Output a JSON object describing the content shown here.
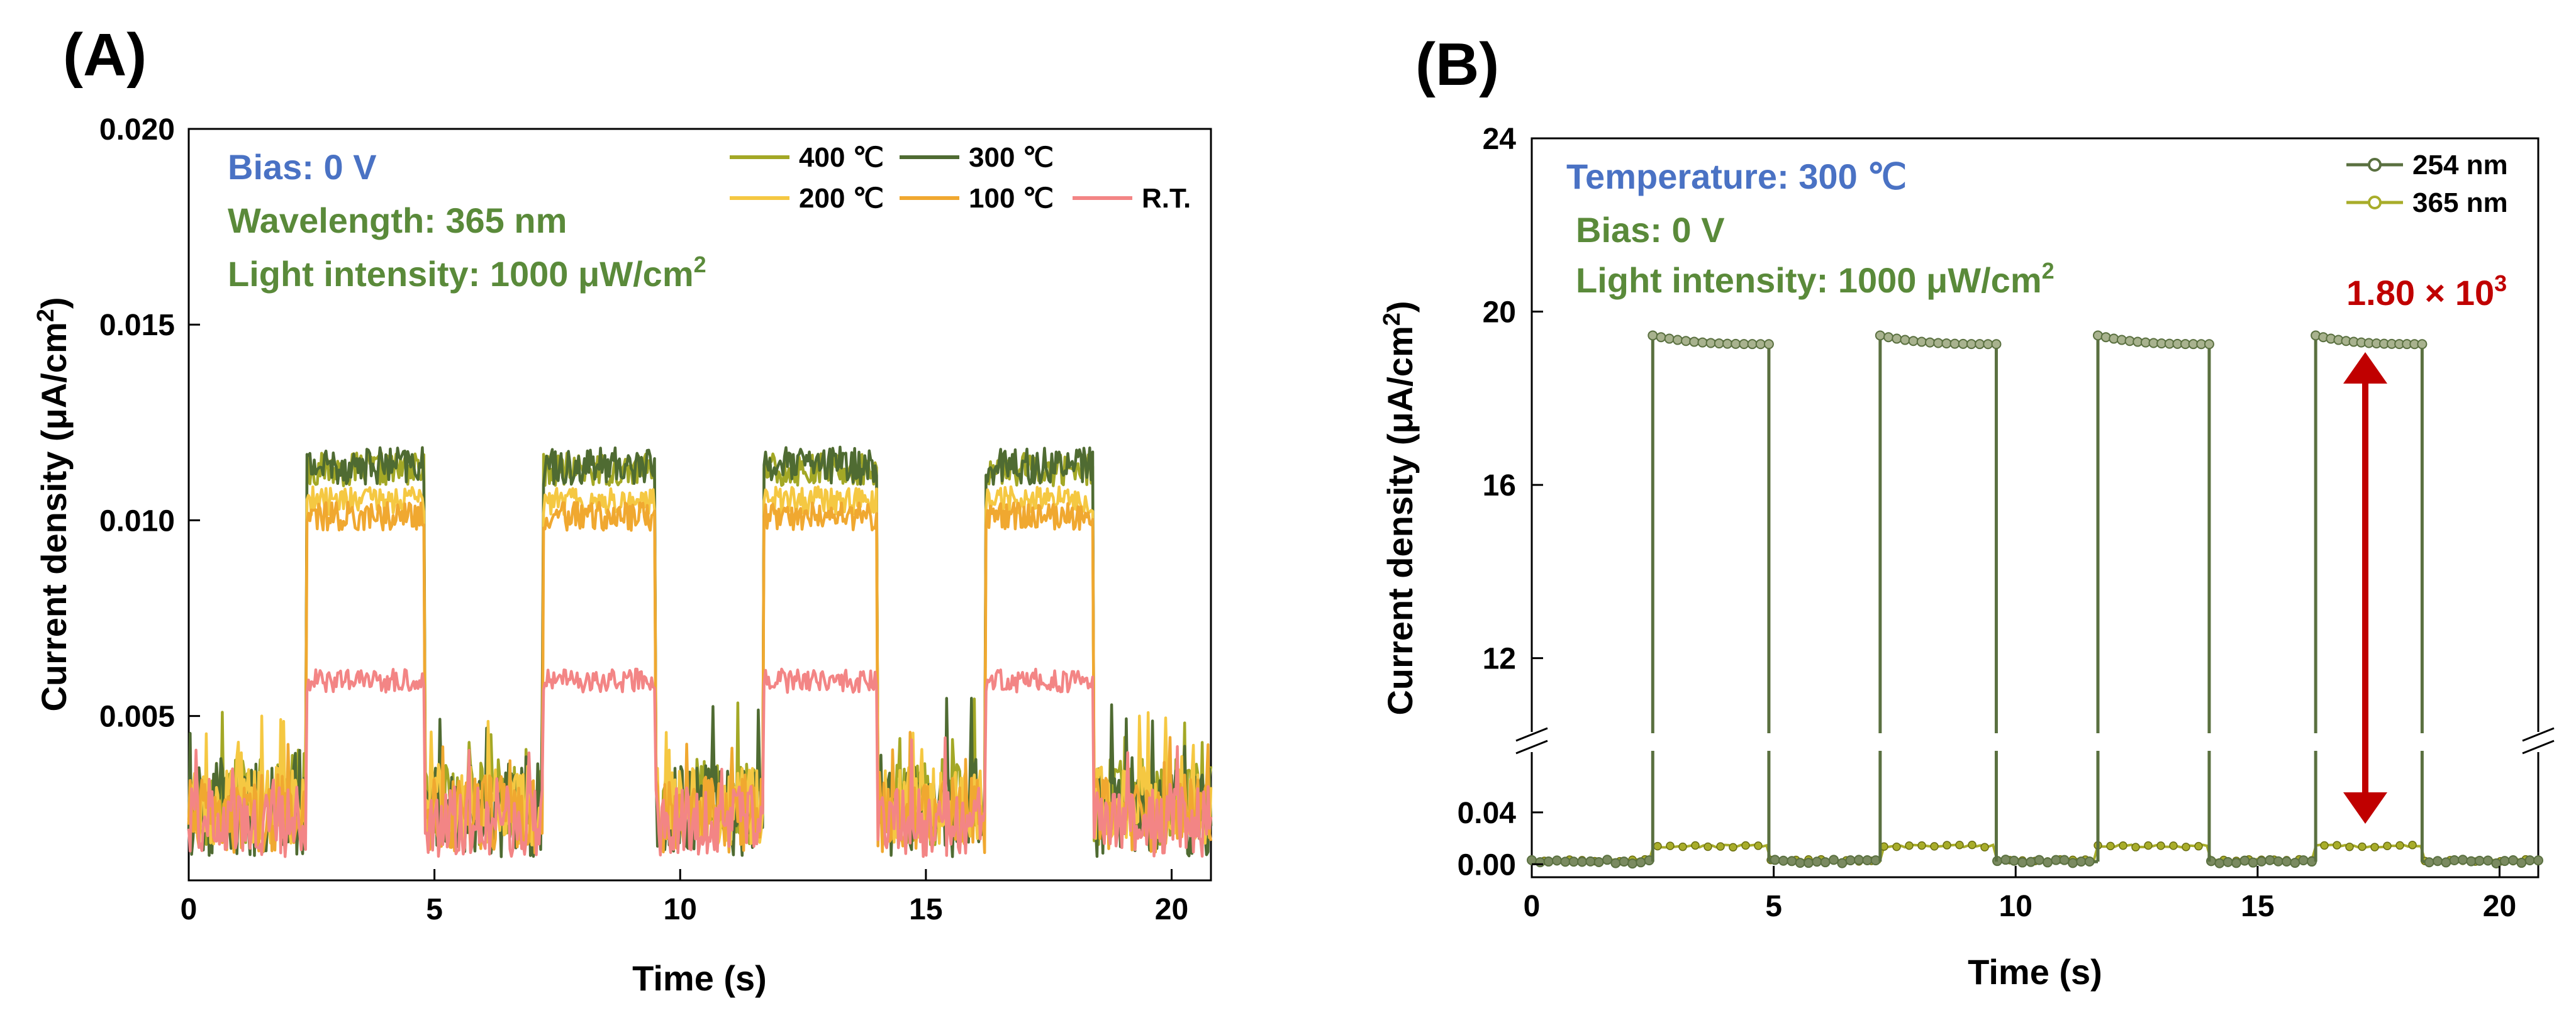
{
  "chart_data": [
    {
      "panel_label": "(A)",
      "type": "line",
      "xlabel": "Time (s)",
      "ylabel_prefix": "Current density (",
      "ylabel_mu": "μ",
      "ylabel_unit": "A/cm",
      "ylabel_sup": "2",
      "ylabel_suffix": ")",
      "xlim": [
        0,
        20.8
      ],
      "ylim": [
        0.0008,
        0.02
      ],
      "xticks": [
        0,
        5,
        10,
        15,
        20
      ],
      "yticks": [
        0.005,
        0.01,
        0.015,
        0.02
      ],
      "ytick_labels": [
        "0.005",
        "0.010",
        "0.015",
        "0.020"
      ],
      "annotations": {
        "bias": "Bias: 0 V",
        "wavelength": "Wavelength: 365 nm",
        "intensity_prefix": "Light intensity: 1000 μW/cm",
        "intensity_sup": "2"
      },
      "annotation_colors": {
        "bias": "#4a72c4",
        "wavelength": "#5a8a3a",
        "intensity": "#5a8a3a"
      },
      "light_on_intervals": [
        [
          2.4,
          4.8
        ],
        [
          7.2,
          9.5
        ],
        [
          11.7,
          14.0
        ],
        [
          16.2,
          18.4
        ]
      ],
      "series": [
        {
          "name": "400 ℃",
          "color": "#a3a826",
          "dark": 0.0028,
          "light": 0.0113,
          "noise_dark": 0.0011,
          "noise_light": 0.0007
        },
        {
          "name": "300 ℃",
          "color": "#4f6b32",
          "dark": 0.0026,
          "light": 0.0114,
          "noise_dark": 0.0012,
          "noise_light": 0.0008
        },
        {
          "name": "200 ℃",
          "color": "#f5c842",
          "dark": 0.0027,
          "light": 0.0105,
          "noise_dark": 0.001,
          "noise_light": 0.0006
        },
        {
          "name": "100 ℃",
          "color": "#f0a830",
          "dark": 0.0025,
          "light": 0.0101,
          "noise_dark": 0.001,
          "noise_light": 0.0006
        },
        {
          "name": "R.T.",
          "color": "#f38585",
          "dark": 0.0023,
          "light": 0.0059,
          "noise_dark": 0.0009,
          "noise_light": 0.0005
        }
      ]
    },
    {
      "panel_label": "(B)",
      "type": "line",
      "xlabel": "Time (s)",
      "ylabel_prefix": "Current density (",
      "ylabel_mu": "μ",
      "ylabel_unit": "A/cm",
      "ylabel_sup": "2",
      "ylabel_suffix": ")",
      "xlim": [
        0,
        20.8
      ],
      "axis_break": true,
      "ylim_lower": [
        -0.01,
        0.07
      ],
      "ylim_upper": [
        10.5,
        24
      ],
      "xticks": [
        0,
        5,
        10,
        15,
        20
      ],
      "yticks_lower": [
        0.0,
        0.04
      ],
      "ytick_labels_lower": [
        "0.00",
        "0.04"
      ],
      "yticks_upper": [
        12,
        16,
        20,
        24
      ],
      "ytick_labels_upper": [
        "12",
        "16",
        "20",
        "24"
      ],
      "annotations": {
        "temperature": "Temperature: 300 ℃",
        "bias": "Bias: 0 V",
        "intensity_prefix": "Light intensity: 1000 μW/cm",
        "intensity_sup": "2",
        "ratio_prefix": "1.80 × 10",
        "ratio_sup": "3"
      },
      "annotation_colors": {
        "temperature": "#4a72c4",
        "bias": "#5a8a3a",
        "intensity": "#5a8a3a",
        "ratio": "#c00000"
      },
      "light_on_intervals": [
        [
          2.5,
          4.9
        ],
        [
          7.2,
          9.6
        ],
        [
          11.7,
          14.0
        ],
        [
          16.2,
          18.4
        ]
      ],
      "series": [
        {
          "name": "254 nm",
          "color": "#5a7040",
          "dark": 0.002,
          "light_start": 19.45,
          "light_end": 19.25
        },
        {
          "name": "365 nm",
          "color": "#a8ad2a",
          "dark": 0.003,
          "light_start": 0.014,
          "light_end": 0.013
        }
      ]
    }
  ]
}
